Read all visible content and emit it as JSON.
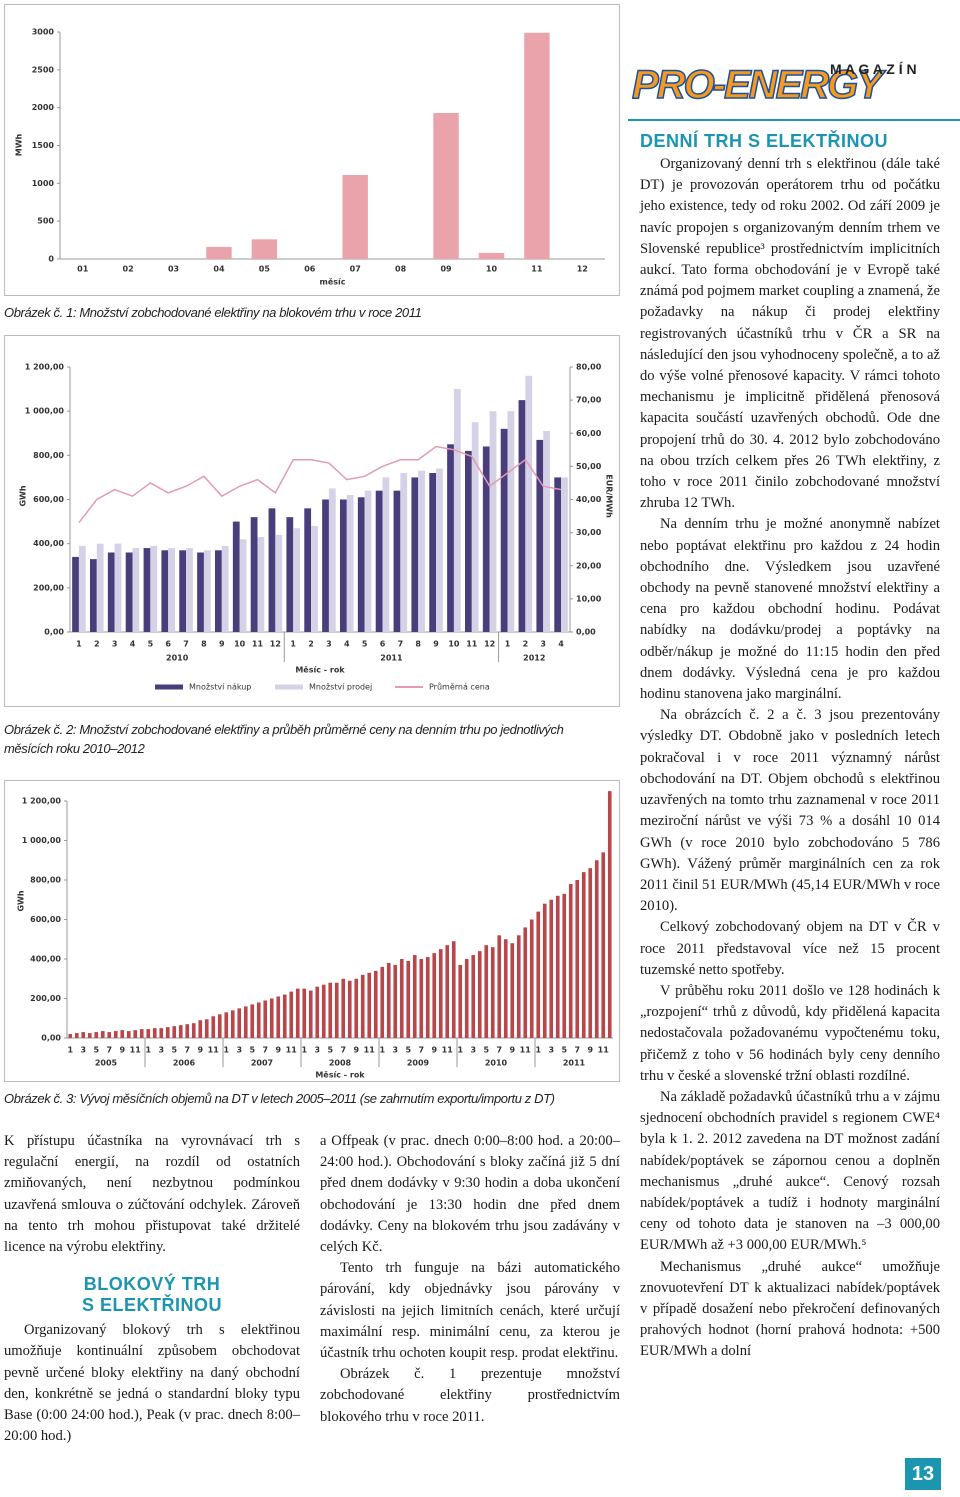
{
  "header": {
    "logo": "PRO-ENERGY",
    "magazine": "M A G A Z Í N"
  },
  "chart_data": [
    {
      "type": "bar",
      "caption": "Obrázek č. 1: Množství zobchodované elektřiny na blokovém trhu v roce 2011",
      "y_label": "MWh",
      "x_label": "měsíc",
      "categories": [
        "01",
        "02",
        "03",
        "04",
        "05",
        "06",
        "07",
        "08",
        "09",
        "10",
        "11",
        "12"
      ],
      "values": [
        0,
        0,
        0,
        160,
        260,
        0,
        1110,
        0,
        1930,
        80,
        2990,
        0
      ],
      "color": "#eba3ab",
      "ylim": [
        0,
        3000
      ],
      "yticks": [
        0,
        500,
        1000,
        1500,
        2000,
        2500,
        3000
      ],
      "grid": false
    },
    {
      "type": "bar",
      "caption": "Obrázek č. 2: Množství zobchodované elektřiny a průběh průměrné ceny na denním trhu po jednotlivých měsících roku 2010–2012",
      "y_label": "GWh",
      "y2_label": "EUR/MWh",
      "x_label": "Měsíc - rok",
      "categories": [
        "1",
        "2",
        "3",
        "4",
        "5",
        "6",
        "7",
        "8",
        "9",
        "10",
        "11",
        "12",
        "1",
        "2",
        "3",
        "4",
        "5",
        "6",
        "7",
        "8",
        "9",
        "10",
        "11",
        "12",
        "1",
        "2",
        "3",
        "4"
      ],
      "groups": [
        "2010",
        "2011",
        "2012"
      ],
      "series": [
        {
          "name": "Množství nákup",
          "color": "#4a3d7c",
          "values": [
            340,
            330,
            360,
            360,
            380,
            370,
            370,
            360,
            370,
            500,
            520,
            560,
            520,
            560,
            600,
            600,
            610,
            640,
            640,
            700,
            720,
            850,
            820,
            840,
            920,
            1050,
            870,
            700
          ]
        },
        {
          "name": "Množství prodej",
          "color": "#d5d1e6",
          "values": [
            390,
            400,
            400,
            380,
            390,
            380,
            380,
            370,
            390,
            420,
            430,
            440,
            470,
            480,
            650,
            620,
            640,
            700,
            720,
            730,
            740,
            1100,
            950,
            1000,
            1000,
            1160,
            910,
            700
          ]
        },
        {
          "name": "Průměrná cena",
          "color": "#e29bb3",
          "type": "line",
          "axis": "y2",
          "values": [
            33,
            40,
            43,
            41,
            45,
            42,
            44,
            47,
            41,
            44,
            46,
            42,
            52,
            52,
            51,
            46,
            47,
            50,
            52,
            52,
            56,
            55,
            53,
            44,
            48,
            52,
            44,
            43
          ]
        }
      ],
      "ylim": [
        0,
        1200
      ],
      "yticks": [
        {
          "value": 0,
          "label": "0,00"
        },
        {
          "value": 200,
          "label": "200,00"
        },
        {
          "value": 400,
          "label": "400,00"
        },
        {
          "value": 600,
          "label": "600,00"
        },
        {
          "value": 800,
          "label": "800,00"
        },
        {
          "value": 1000,
          "label": "1 000,00"
        },
        {
          "value": 1200,
          "label": "1 200,00"
        }
      ],
      "y2lim": [
        0,
        80
      ],
      "y2ticks": [
        {
          "value": 0,
          "label": "0,00"
        },
        {
          "value": 10,
          "label": "10,00"
        },
        {
          "value": 20,
          "label": "20,00"
        },
        {
          "value": 30,
          "label": "30,00"
        },
        {
          "value": 40,
          "label": "40,00"
        },
        {
          "value": 50,
          "label": "50,00"
        },
        {
          "value": 60,
          "label": "60,00"
        },
        {
          "value": 70,
          "label": "70,00"
        },
        {
          "value": 80,
          "label": "80,00"
        }
      ],
      "grid": false
    },
    {
      "type": "bar",
      "caption": "Obrázek č. 3: Vývoj měsíčních objemů na DT v letech 2005–2011 (se zahrnutím exportu/importu z DT)",
      "y_label": "GWh",
      "x_label": "Měsíc - rok",
      "categories": [
        "1",
        null,
        "3",
        null,
        "5",
        null,
        "7",
        null,
        "9",
        null,
        "11",
        null,
        "1",
        null,
        "3",
        null,
        "5",
        null,
        "7",
        null,
        "9",
        null,
        "11",
        null,
        "1",
        null,
        "3",
        null,
        "5",
        null,
        "7",
        null,
        "9",
        null,
        "11",
        null,
        "1",
        null,
        "3",
        null,
        "5",
        null,
        "7",
        null,
        "9",
        null,
        "11",
        null,
        "1",
        null,
        "3",
        null,
        "5",
        null,
        "7",
        null,
        "9",
        null,
        "11",
        null,
        "1",
        null,
        "3",
        null,
        "5",
        null,
        "7",
        null,
        "9",
        null,
        "11",
        null,
        "1",
        null,
        "3",
        null,
        "5",
        null,
        "7",
        null,
        "9",
        null,
        "11",
        null
      ],
      "groups": [
        "2005",
        "2006",
        "2007",
        "2008",
        "2009",
        "2010",
        "2011"
      ],
      "values": [
        20,
        25,
        30,
        25,
        30,
        35,
        30,
        35,
        40,
        35,
        40,
        45,
        45,
        50,
        50,
        55,
        60,
        65,
        70,
        75,
        90,
        95,
        110,
        120,
        130,
        140,
        150,
        160,
        170,
        180,
        190,
        200,
        210,
        220,
        235,
        250,
        250,
        240,
        260,
        270,
        280,
        280,
        300,
        290,
        300,
        320,
        330,
        340,
        360,
        380,
        370,
        400,
        390,
        420,
        400,
        410,
        430,
        450,
        470,
        490,
        370,
        400,
        420,
        440,
        470,
        460,
        520,
        500,
        480,
        520,
        560,
        600,
        640,
        680,
        700,
        720,
        730,
        780,
        800,
        840,
        860,
        900,
        940,
        1250
      ],
      "color": "#b8474c",
      "ylim": [
        0,
        1200
      ],
      "yticks": [
        {
          "value": 0,
          "label": "0,00"
        },
        {
          "value": 200,
          "label": "200,00"
        },
        {
          "value": 400,
          "label": "400,00"
        },
        {
          "value": 600,
          "label": "600,00"
        },
        {
          "value": 800,
          "label": "800,00"
        },
        {
          "value": 1000,
          "label": "1 000,00"
        },
        {
          "value": 1200,
          "label": "1 200,00"
        }
      ],
      "grid": false
    }
  ],
  "left_column": {
    "paragraphs": [
      "K přístupu účastníka na vyrovnávací trh s regulační energií, na rozdíl od ostatních zmiňovaných, není nezbytnou podmínkou uzavřená smlouva o zúčtování odchylek. Zároveň na tento trh mohou přistupovat také držitelé licence na výrobu elektřiny."
    ],
    "heading": "BLOKOVÝ TRH S ELEKTŘINOU",
    "paragraphs_after": [
      "Organizovaný blokový trh s elektřinou umožňuje kontinuální způsobem obchodovat pevně určené bloky elektřiny na daný obchodní den, konkrétně se jedná o standardní bloky typu Base (0:00 24:00 hod.), Peak (v prac. dnech 8:00–20:00 hod.)"
    ]
  },
  "middle_column": {
    "paragraphs": [
      "a Offpeak (v prac. dnech 0:00–8:00 hod. a 20:00–24:00 hod.). Obchodování s bloky začíná již 5 dní před dnem dodávky v 9:30 hodin a doba ukončení obchodování je 13:30 hodin dne před dnem dodávky. Ceny na blokovém trhu jsou zadávány v celých Kč.",
      "Tento trh funguje na bázi automatického párování, kdy objednávky jsou párovány v závislosti na jejich limitních cenách, které určují maximální resp. minimální cenu, za kterou je účastník trhu ochoten koupit resp. prodat elektřinu.",
      "Obrázek č. 1 prezentuje množství zobchodované elektřiny prostřednictvím blokového trhu v roce 2011."
    ]
  },
  "right_column": {
    "heading": "DENNÍ TRH S ELEKTŘINOU",
    "paragraphs": [
      "Organizovaný denní trh s elektřinou (dále také DT) je provozován operátorem trhu od počátku jeho existence, tedy od roku 2002. Od září 2009 je navíc propojen s organizovaným denním trhem ve Slovenské republice³ prostřednictvím implicitních aukcí. Tato forma obchodování je v Evropě také známá pod pojmem market coupling a znamená, že požadavky na nákup či prodej elektřiny registrovaných účastníků trhu v ČR a SR na následující den jsou vyhodnoceny společně, a to až do výše volné přenosové kapacity. V rámci tohoto mechanismu je implicitně přidělená přenosová kapacita součástí uzavřených obchodů. Ode dne propojení trhů do 30. 4. 2012 bylo zobchodováno na obou trzích celkem přes 26 TWh elektřiny, z toho v roce 2011 činilo zobchodované množství zhruba 12 TWh.",
      "Na denním trhu je možné anonymně nabízet nebo poptávat elektřinu pro každou z 24 hodin obchodního dne. Výsledkem jsou uzavřené obchody na pevně stanovené množství elektřiny a cena pro každou obchodní hodinu. Podávat nabídky na dodávku/prodej a poptávky na odběr/nákup je možné do 11:15 hodin den před dnem dodávky. Výsledná cena je pro každou hodinu stanovena jako marginální.",
      "Na obrázcích č. 2 a č. 3 jsou prezentovány výsledky DT. Obdobně jako v posledních letech pokračoval i v roce 2011 významný nárůst obchodování na DT. Objem obchodů s elektřinou uzavřených na tomto trhu zaznamenal v roce 2011 meziroční nárůst ve výši 73 % a dosáhl 10 014 GWh (v roce 2010 bylo zobchodováno 5 786 GWh). Vážený průměr marginálních cen za rok 2011 činil 51 EUR/MWh (45,14 EUR/MWh v roce 2010).",
      "Celkový zobchodovaný objem na DT v ČR v roce 2011 představoval více než 15 procent tuzemské netto spotřeby.",
      "V průběhu roku 2011 došlo ve 128 hodinách k „rozpojení“ trhů z důvodů, kdy přidělená kapacita nedostačovala požadovanému vypočtenému toku, přičemž z toho v 56 hodinách byly ceny denního trhu v české a slovenské tržní oblasti rozdílné.",
      "Na základě požadavků účastníků trhu a v zájmu sjednocení obchodních pravidel s regionem CWE⁴ byla k 1. 2. 2012 zavedena na DT možnost zadání nabídek/poptávek se zápornou cenou a doplněn mechanismus „druhé aukce“. Cenový rozsah nabídek/poptávek a tudíž i hodnoty marginální ceny od tohoto data je stanoven na –3 000,00 EUR/MWh až +3 000,00 EUR/MWh.⁵",
      "Mechanismus „druhé aukce“ umožňuje znovuotevření DT k aktualizaci nabídek/poptávek v případě dosažení nebo překročení definovaných prahových hodnot (horní prahová hodnota: +500 EUR/MWh a dolní"
    ]
  },
  "footer": {
    "page_number": "13"
  }
}
